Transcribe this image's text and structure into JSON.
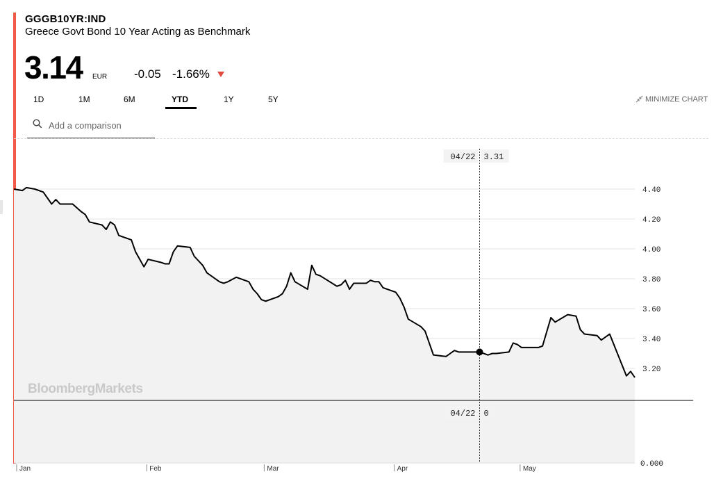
{
  "header": {
    "ticker": "GGGB10YR:IND",
    "name": "Greece Govt Bond 10 Year Acting as Benchmark",
    "price": "3.14",
    "currency": "EUR",
    "change": "-0.05",
    "change_pct": "-1.66%",
    "direction": "down"
  },
  "tabs": [
    {
      "label": "1D",
      "active": false
    },
    {
      "label": "1M",
      "active": false
    },
    {
      "label": "6M",
      "active": false
    },
    {
      "label": "YTD",
      "active": true
    },
    {
      "label": "1Y",
      "active": false
    },
    {
      "label": "5Y",
      "active": false
    }
  ],
  "minimize_label": "MINIMIZE CHART",
  "search": {
    "placeholder": "Add a comparison"
  },
  "watermark": "BloombergMarkets",
  "colors": {
    "accent": "#f05a4a",
    "line": "#000000",
    "area": "#f2f2f2",
    "down": "#e04a3e"
  },
  "chart_data": {
    "type": "area",
    "title": "",
    "xlabel": "",
    "ylabel": "",
    "ylim": [
      3.0,
      4.5
    ],
    "y_ticks": [
      "4.40",
      "4.20",
      "4.00",
      "3.80",
      "3.60",
      "3.40",
      "3.20"
    ],
    "x_ticks": [
      "Jan",
      "Feb",
      "Mar",
      "Apr",
      "May"
    ],
    "x_tick_days": [
      0,
      31,
      59,
      90,
      120
    ],
    "lower_panel_ticks": [
      "0.000"
    ],
    "crosshair": {
      "date": "04/22",
      "value": "3.31",
      "day": 111,
      "lower_value": "0"
    },
    "series": [
      {
        "values": [
          [
            0,
            4.4
          ],
          [
            2,
            4.39
          ],
          [
            3,
            4.41
          ],
          [
            5,
            4.4
          ],
          [
            7,
            4.38
          ],
          [
            9,
            4.3
          ],
          [
            10,
            4.33
          ],
          [
            11,
            4.3
          ],
          [
            14,
            4.3
          ],
          [
            16,
            4.25
          ],
          [
            17,
            4.23
          ],
          [
            18,
            4.18
          ],
          [
            21,
            4.16
          ],
          [
            22,
            4.13
          ],
          [
            23,
            4.18
          ],
          [
            24,
            4.16
          ],
          [
            25,
            4.09
          ],
          [
            28,
            4.06
          ],
          [
            29,
            3.98
          ],
          [
            31,
            3.88
          ],
          [
            32,
            3.93
          ],
          [
            35,
            3.91
          ],
          [
            36,
            3.9
          ],
          [
            37,
            3.9
          ],
          [
            38,
            3.98
          ],
          [
            39,
            4.02
          ],
          [
            42,
            4.01
          ],
          [
            43,
            3.95
          ],
          [
            45,
            3.89
          ],
          [
            46,
            3.84
          ],
          [
            49,
            3.78
          ],
          [
            50,
            3.77
          ],
          [
            51,
            3.78
          ],
          [
            53,
            3.81
          ],
          [
            56,
            3.78
          ],
          [
            57,
            3.73
          ],
          [
            58,
            3.7
          ],
          [
            59,
            3.66
          ],
          [
            60,
            3.65
          ],
          [
            63,
            3.68
          ],
          [
            64,
            3.7
          ],
          [
            65,
            3.75
          ],
          [
            66,
            3.84
          ],
          [
            67,
            3.78
          ],
          [
            70,
            3.73
          ],
          [
            71,
            3.89
          ],
          [
            72,
            3.83
          ],
          [
            73,
            3.82
          ],
          [
            77,
            3.75
          ],
          [
            78,
            3.76
          ],
          [
            79,
            3.79
          ],
          [
            80,
            3.73
          ],
          [
            81,
            3.77
          ],
          [
            84,
            3.77
          ],
          [
            85,
            3.79
          ],
          [
            86,
            3.78
          ],
          [
            87,
            3.78
          ],
          [
            88,
            3.74
          ],
          [
            91,
            3.71
          ],
          [
            92,
            3.67
          ],
          [
            93,
            3.61
          ],
          [
            94,
            3.53
          ],
          [
            97,
            3.48
          ],
          [
            98,
            3.45
          ],
          [
            99,
            3.37
          ],
          [
            100,
            3.29
          ],
          [
            103,
            3.28
          ],
          [
            105,
            3.32
          ],
          [
            106,
            3.31
          ],
          [
            111,
            3.31
          ],
          [
            113,
            3.29
          ],
          [
            114,
            3.3
          ],
          [
            115,
            3.3
          ],
          [
            118,
            3.31
          ],
          [
            119,
            3.37
          ],
          [
            120,
            3.36
          ],
          [
            121,
            3.34
          ],
          [
            125,
            3.34
          ],
          [
            126,
            3.35
          ],
          [
            128,
            3.54
          ],
          [
            129,
            3.51
          ],
          [
            132,
            3.56
          ],
          [
            134,
            3.55
          ],
          [
            135,
            3.46
          ],
          [
            136,
            3.43
          ],
          [
            139,
            3.42
          ],
          [
            140,
            3.39
          ],
          [
            142,
            3.43
          ],
          [
            146,
            3.15
          ],
          [
            147,
            3.18
          ],
          [
            148,
            3.14
          ]
        ]
      }
    ]
  }
}
